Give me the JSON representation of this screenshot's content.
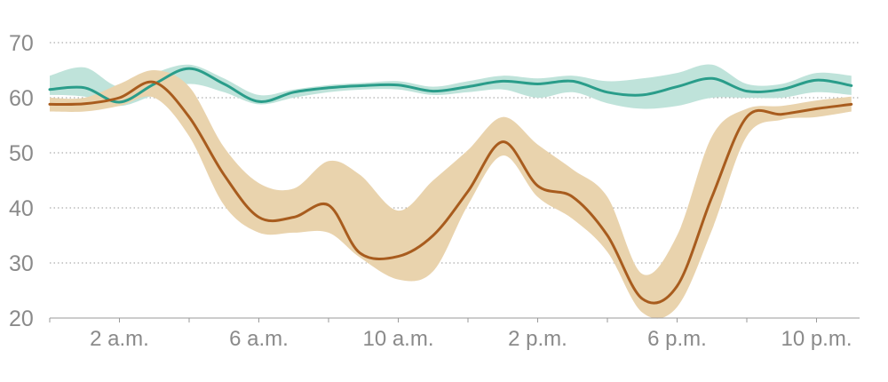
{
  "chart_data": {
    "type": "line",
    "x_unit": "hour of day",
    "ylim": [
      20,
      70
    ],
    "xlim": [
      0,
      23.5
    ],
    "y_ticks": [
      {
        "value": 70,
        "label": "70"
      },
      {
        "value": 60,
        "label": "60"
      },
      {
        "value": 50,
        "label": "50"
      },
      {
        "value": 40,
        "label": "40"
      },
      {
        "value": 30,
        "label": "30"
      },
      {
        "value": 20,
        "label": "20"
      }
    ],
    "x_ticks_minor": [
      0,
      4,
      6,
      8,
      10,
      12,
      14,
      16,
      18,
      20
    ],
    "x_labels": [
      {
        "hour": 2,
        "label": "2 a.m."
      },
      {
        "hour": 6,
        "label": "6 a.m."
      },
      {
        "hour": 10,
        "label": "10 a.m."
      },
      {
        "hour": 14,
        "label": "2 p.m."
      },
      {
        "hour": 18,
        "label": "6 p.m."
      },
      {
        "hour": 22,
        "label": "10 p.m."
      }
    ],
    "grid": true,
    "series": [
      {
        "color": "#2a9d8a",
        "band_color": "#bfe3da",
        "x": [
          0,
          1,
          2,
          3,
          4,
          5,
          6,
          7,
          8,
          9,
          10,
          11,
          12,
          13,
          14,
          15,
          16,
          17,
          18,
          19,
          20,
          21,
          22,
          23
        ],
        "y": [
          61.5,
          61.8,
          59.2,
          62.5,
          65.3,
          62.5,
          59.3,
          61.0,
          61.8,
          62.2,
          62.3,
          61.2,
          62.0,
          63.0,
          62.5,
          63.0,
          61.0,
          60.5,
          62.0,
          63.5,
          61.2,
          61.5,
          63.2,
          62.2
        ],
        "lower": [
          60.5,
          60.2,
          58.5,
          60.5,
          62.5,
          61.0,
          58.8,
          60.0,
          61.0,
          61.5,
          61.5,
          60.5,
          61.0,
          61.5,
          60.0,
          61.0,
          59.0,
          58.0,
          58.5,
          60.0,
          60.0,
          60.0,
          61.0,
          60.5
        ],
        "upper": [
          64.0,
          65.5,
          62.0,
          64.5,
          66.0,
          63.5,
          60.5,
          61.5,
          62.3,
          62.7,
          63.0,
          62.0,
          63.0,
          64.0,
          63.5,
          64.0,
          63.0,
          63.5,
          64.5,
          66.0,
          62.5,
          62.5,
          64.5,
          64.0
        ]
      },
      {
        "color": "#a85c1e",
        "band_color": "#e9d3ad",
        "x": [
          0,
          1,
          2,
          3,
          4,
          5,
          6,
          7,
          8,
          8.9,
          10,
          11,
          12,
          13,
          14,
          15,
          16,
          17,
          18,
          19,
          20,
          21,
          22,
          23
        ],
        "y": [
          58.8,
          58.9,
          60.0,
          62.8,
          56.5,
          46.0,
          38.3,
          38.3,
          40.5,
          31.8,
          31.2,
          35.0,
          43.0,
          52.0,
          44.0,
          42.0,
          35.0,
          23.5,
          25.8,
          42.0,
          56.5,
          57.0,
          58.0,
          58.8
        ],
        "lower": [
          57.5,
          57.5,
          58.5,
          60.0,
          53.0,
          40.5,
          35.5,
          35.5,
          35.5,
          31.0,
          27.0,
          28.5,
          40.5,
          49.5,
          42.0,
          38.0,
          32.0,
          21.0,
          22.0,
          36.0,
          53.0,
          56.0,
          56.5,
          57.5
        ],
        "upper": [
          60.0,
          60.0,
          62.5,
          65.0,
          62.0,
          51.0,
          44.5,
          43.5,
          48.5,
          46.0,
          39.5,
          45.0,
          50.5,
          56.5,
          51.5,
          47.0,
          42.0,
          28.0,
          35.0,
          53.0,
          58.0,
          58.5,
          59.5,
          60.2
        ]
      }
    ]
  }
}
